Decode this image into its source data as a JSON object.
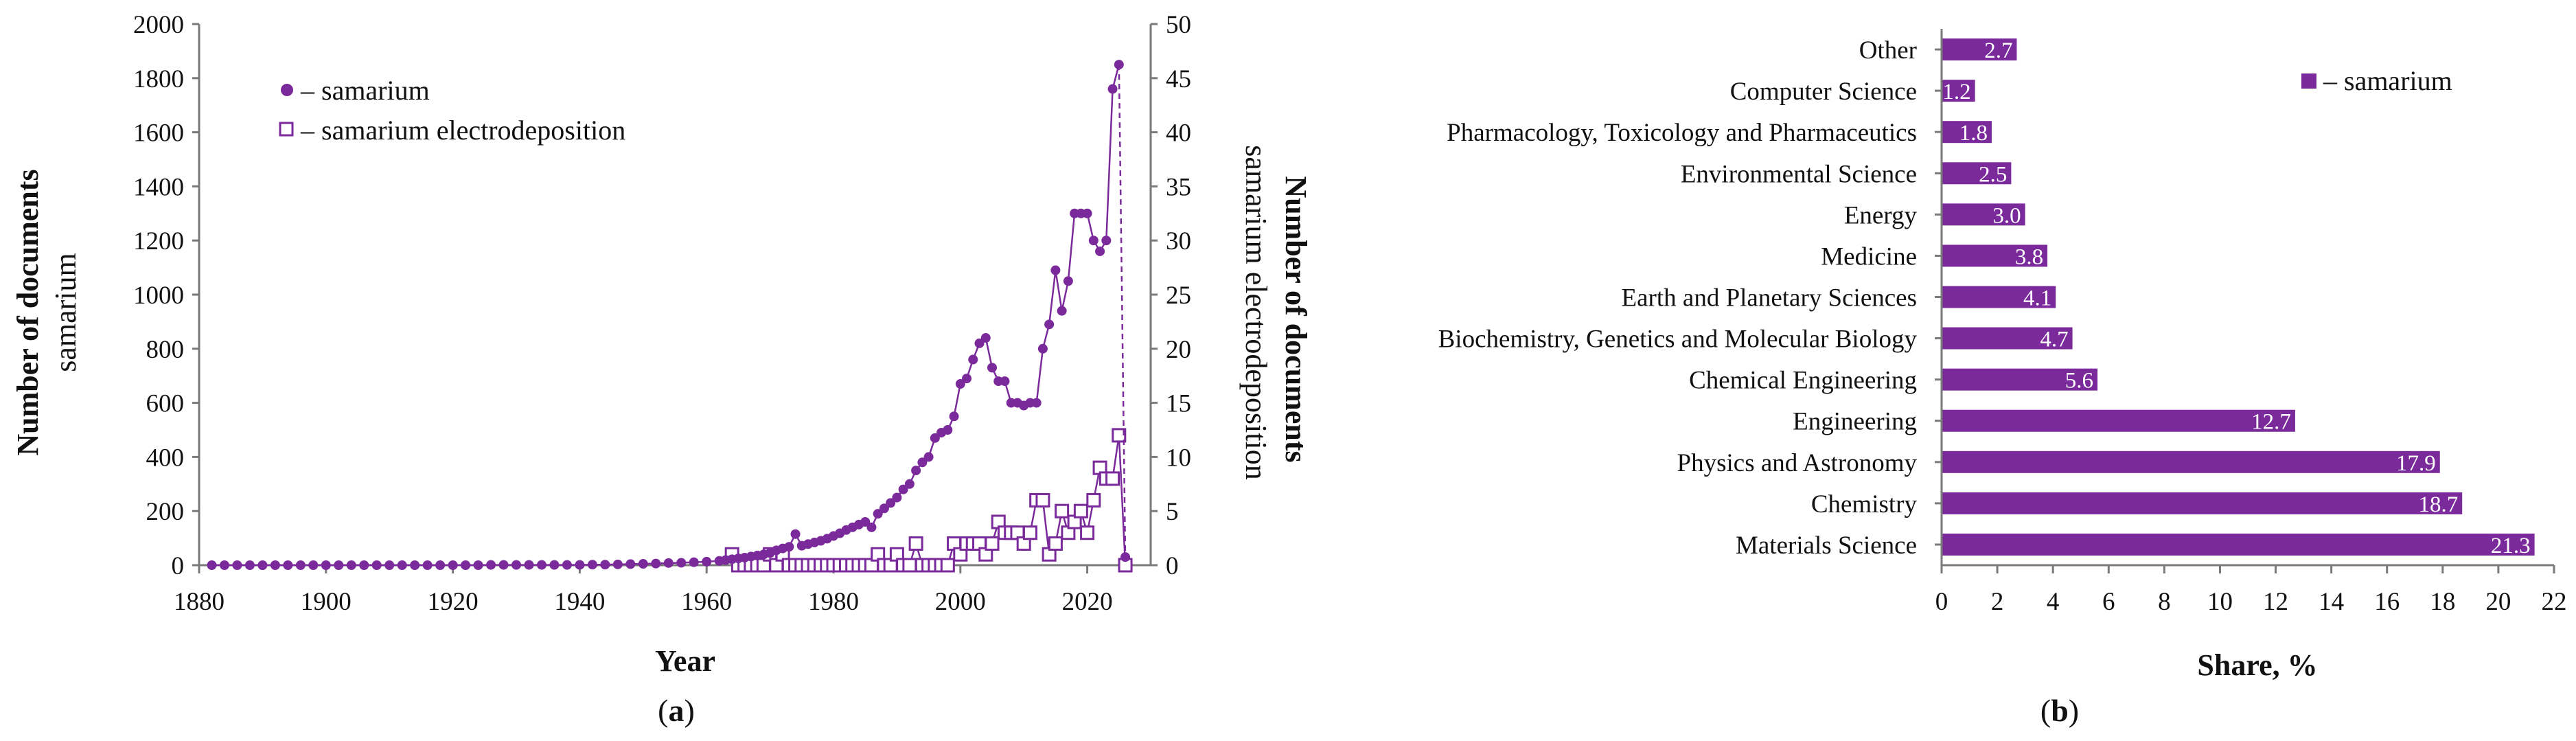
{
  "colors": {
    "accent": "#7b2a9b",
    "axis": "#7a7a7a"
  },
  "panels": {
    "a": {
      "caption_letter": "a"
    },
    "b": {
      "caption_letter": "b"
    }
  },
  "chart_data": [
    {
      "type": "line",
      "panel": "a",
      "xlabel": "Year",
      "ylabel_bold": "Number of documents",
      "ylabel": "samarium",
      "y2label_bold": "Number of documents",
      "y2label": "samarium electrodeposition",
      "xlim": [
        1880,
        2030
      ],
      "xticks": [
        "1880",
        "1900",
        "1920",
        "1940",
        "1960",
        "1980",
        "2000",
        "2020"
      ],
      "ylim": [
        0,
        2000
      ],
      "yticks": [
        "0",
        "200",
        "400",
        "600",
        "800",
        "1000",
        "1200",
        "1400",
        "1600",
        "1800",
        "2000"
      ],
      "y2lim": [
        0,
        50
      ],
      "y2ticks": [
        "0",
        "5",
        "10",
        "15",
        "20",
        "25",
        "30",
        "35",
        "40",
        "45",
        "50"
      ],
      "legend": [
        "– samarium",
        "– samarium electrodeposition"
      ],
      "series": [
        {
          "name": "samarium",
          "axis": "left",
          "marker": "circle",
          "points": [
            [
              1882,
              0
            ],
            [
              1884,
              0
            ],
            [
              1886,
              0
            ],
            [
              1888,
              0
            ],
            [
              1890,
              0
            ],
            [
              1892,
              0
            ],
            [
              1894,
              0
            ],
            [
              1896,
              0
            ],
            [
              1898,
              0
            ],
            [
              1900,
              0
            ],
            [
              1902,
              0
            ],
            [
              1904,
              0
            ],
            [
              1906,
              0
            ],
            [
              1908,
              0
            ],
            [
              1910,
              0
            ],
            [
              1912,
              0
            ],
            [
              1914,
              0
            ],
            [
              1916,
              0
            ],
            [
              1918,
              0
            ],
            [
              1920,
              0
            ],
            [
              1922,
              0
            ],
            [
              1924,
              0
            ],
            [
              1926,
              1
            ],
            [
              1928,
              1
            ],
            [
              1930,
              1
            ],
            [
              1932,
              1
            ],
            [
              1934,
              1
            ],
            [
              1936,
              1
            ],
            [
              1938,
              1
            ],
            [
              1940,
              1
            ],
            [
              1942,
              2
            ],
            [
              1944,
              2
            ],
            [
              1946,
              3
            ],
            [
              1948,
              4
            ],
            [
              1950,
              5
            ],
            [
              1952,
              6
            ],
            [
              1954,
              8
            ],
            [
              1956,
              9
            ],
            [
              1958,
              11
            ],
            [
              1960,
              13
            ],
            [
              1962,
              16
            ],
            [
              1963,
              19
            ],
            [
              1964,
              22
            ],
            [
              1965,
              25
            ],
            [
              1966,
              28
            ],
            [
              1967,
              32
            ],
            [
              1968,
              36
            ],
            [
              1969,
              40
            ],
            [
              1970,
              45
            ],
            [
              1971,
              55
            ],
            [
              1972,
              62
            ],
            [
              1973,
              68
            ],
            [
              1974,
              115
            ],
            [
              1975,
              72
            ],
            [
              1976,
              78
            ],
            [
              1977,
              84
            ],
            [
              1978,
              90
            ],
            [
              1979,
              98
            ],
            [
              1980,
              108
            ],
            [
              1981,
              118
            ],
            [
              1982,
              130
            ],
            [
              1983,
              140
            ],
            [
              1984,
              150
            ],
            [
              1985,
              160
            ],
            [
              1986,
              140
            ],
            [
              1987,
              190
            ],
            [
              1988,
              210
            ],
            [
              1989,
              230
            ],
            [
              1990,
              250
            ],
            [
              1991,
              280
            ],
            [
              1992,
              300
            ],
            [
              1993,
              350
            ],
            [
              1994,
              380
            ],
            [
              1995,
              400
            ],
            [
              1996,
              470
            ],
            [
              1997,
              490
            ],
            [
              1998,
              500
            ],
            [
              1999,
              550
            ],
            [
              2000,
              670
            ],
            [
              2001,
              690
            ],
            [
              2002,
              760
            ],
            [
              2003,
              820
            ],
            [
              2004,
              840
            ],
            [
              2005,
              730
            ],
            [
              2006,
              680
            ],
            [
              2007,
              680
            ],
            [
              2008,
              600
            ],
            [
              2009,
              600
            ],
            [
              2010,
              590
            ],
            [
              2011,
              600
            ],
            [
              2012,
              600
            ],
            [
              2013,
              800
            ],
            [
              2014,
              890
            ],
            [
              2015,
              1090
            ],
            [
              2016,
              940
            ],
            [
              2017,
              1050
            ],
            [
              2018,
              1300
            ],
            [
              2019,
              1300
            ],
            [
              2020,
              1300
            ],
            [
              2021,
              1200
            ],
            [
              2022,
              1160
            ],
            [
              2023,
              1200
            ],
            [
              2024,
              1760
            ],
            [
              2025,
              1850
            ],
            [
              2026,
              30
            ]
          ]
        },
        {
          "name": "samarium electrodeposition",
          "axis": "right",
          "marker": "square",
          "points": [
            [
              1964,
              1
            ],
            [
              1965,
              0
            ],
            [
              1966,
              0
            ],
            [
              1967,
              0
            ],
            [
              1968,
              0
            ],
            [
              1969,
              0
            ],
            [
              1970,
              1
            ],
            [
              1971,
              0
            ],
            [
              1972,
              1
            ],
            [
              1973,
              0
            ],
            [
              1974,
              0
            ],
            [
              1975,
              0
            ],
            [
              1976,
              0
            ],
            [
              1977,
              0
            ],
            [
              1978,
              0
            ],
            [
              1979,
              0
            ],
            [
              1980,
              0
            ],
            [
              1981,
              0
            ],
            [
              1982,
              0
            ],
            [
              1983,
              0
            ],
            [
              1984,
              0
            ],
            [
              1985,
              0
            ],
            [
              1986,
              0
            ],
            [
              1987,
              1
            ],
            [
              1988,
              0
            ],
            [
              1989,
              0
            ],
            [
              1990,
              1
            ],
            [
              1991,
              0
            ],
            [
              1992,
              0
            ],
            [
              1993,
              2
            ],
            [
              1994,
              0
            ],
            [
              1995,
              0
            ],
            [
              1996,
              0
            ],
            [
              1997,
              0
            ],
            [
              1998,
              0
            ],
            [
              1999,
              2
            ],
            [
              2000,
              1
            ],
            [
              2001,
              2
            ],
            [
              2002,
              2
            ],
            [
              2003,
              2
            ],
            [
              2004,
              1
            ],
            [
              2005,
              2
            ],
            [
              2006,
              4
            ],
            [
              2007,
              3
            ],
            [
              2008,
              3
            ],
            [
              2009,
              3
            ],
            [
              2010,
              2
            ],
            [
              2011,
              3
            ],
            [
              2012,
              6
            ],
            [
              2013,
              6
            ],
            [
              2014,
              1
            ],
            [
              2015,
              2
            ],
            [
              2016,
              5
            ],
            [
              2017,
              3
            ],
            [
              2018,
              4
            ],
            [
              2019,
              5
            ],
            [
              2020,
              3
            ],
            [
              2021,
              6
            ],
            [
              2022,
              9
            ],
            [
              2023,
              8
            ],
            [
              2024,
              8
            ],
            [
              2025,
              12
            ],
            [
              2026,
              0
            ]
          ]
        }
      ]
    },
    {
      "type": "bar",
      "orientation": "horizontal",
      "panel": "b",
      "xlabel": "Share, %",
      "xlim": [
        0,
        22
      ],
      "xticks": [
        "0",
        "2",
        "4",
        "6",
        "8",
        "10",
        "12",
        "14",
        "16",
        "18",
        "20",
        "22"
      ],
      "legend": [
        "– samarium"
      ],
      "categories": [
        "Other",
        "Computer Science",
        "Pharmacology, Toxicology and Pharmaceutics",
        "Environmental Science",
        "Energy",
        "Medicine",
        "Earth and Planetary Sciences",
        "Biochemistry, Genetics and Molecular Biology",
        "Chemical Engineering",
        "Engineering",
        "Physics and Astronomy",
        "Chemistry",
        "Materials Science"
      ],
      "values": [
        2.7,
        1.2,
        1.8,
        2.5,
        3.0,
        3.8,
        4.1,
        4.7,
        5.6,
        12.7,
        17.9,
        18.7,
        21.3
      ],
      "value_labels": [
        "2.7",
        "1.2",
        "1.8",
        "2.5",
        "3.0",
        "3.8",
        "4.1",
        "4.7",
        "5.6",
        "12.7",
        "17.9",
        "18.7",
        "21.3"
      ]
    }
  ]
}
